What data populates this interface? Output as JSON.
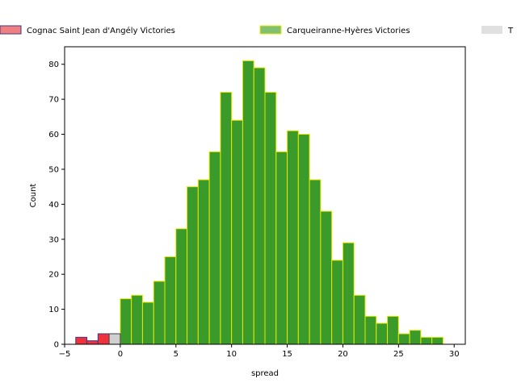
{
  "chart_data": {
    "type": "bar",
    "xlabel": "spread",
    "ylabel": "Count",
    "xlim": [
      -5,
      31
    ],
    "ylim": [
      0,
      85
    ],
    "bin_width": 1,
    "grid": false,
    "legend_placement": "top",
    "x_ticks": [
      -5,
      0,
      5,
      10,
      15,
      20,
      25,
      30
    ],
    "y_ticks": [
      0,
      10,
      20,
      30,
      40,
      50,
      60,
      70,
      80
    ],
    "series": [
      {
        "name": "Cognac Saint Jean d'Angély Victories",
        "fill": "#f0303a",
        "edge": "#3a3a8a",
        "legend_fill": "#f08080",
        "bins": [
          [
            -3.5,
            2
          ],
          [
            -2.5,
            1
          ],
          [
            -1.5,
            3
          ],
          [
            -0.5,
            3
          ]
        ]
      },
      {
        "name": "Carqueiranne-Hyères Victories",
        "fill": "#3a9a2a",
        "edge": "#e8e800",
        "legend_fill": "#80c070",
        "bins": [
          [
            0.5,
            13
          ],
          [
            1.5,
            14
          ],
          [
            2.5,
            12
          ],
          [
            3.5,
            18
          ],
          [
            4.5,
            25
          ],
          [
            5.5,
            33
          ],
          [
            6.5,
            45
          ],
          [
            7.5,
            47
          ],
          [
            8.5,
            55
          ],
          [
            9.5,
            72
          ],
          [
            10.5,
            64
          ],
          [
            11.5,
            81
          ],
          [
            12.5,
            79
          ],
          [
            13.5,
            72
          ],
          [
            14.5,
            55
          ],
          [
            15.5,
            61
          ],
          [
            16.5,
            60
          ],
          [
            17.5,
            47
          ],
          [
            18.5,
            38
          ],
          [
            19.5,
            24
          ],
          [
            20.5,
            29
          ],
          [
            21.5,
            14
          ],
          [
            22.5,
            8
          ],
          [
            23.5,
            6
          ],
          [
            24.5,
            8
          ],
          [
            25.5,
            3
          ],
          [
            26.5,
            4
          ],
          [
            27.5,
            2
          ],
          [
            28.5,
            2
          ]
        ]
      },
      {
        "name": "T",
        "fill": "#d0d0d0",
        "edge": "#444444",
        "legend_fill": "#e0e0e0",
        "bins": [
          [
            -0.5,
            3
          ]
        ]
      }
    ]
  }
}
